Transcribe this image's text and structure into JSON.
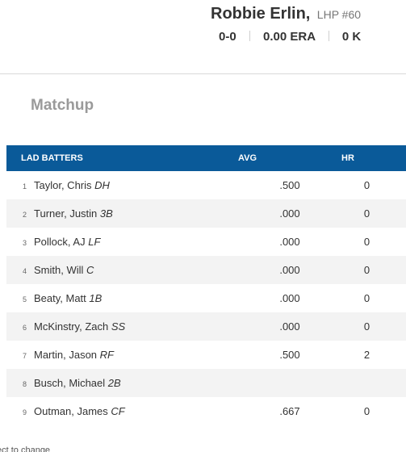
{
  "pitcher": {
    "name": "Robbie Erlin,",
    "position": "LHP #60",
    "record": "0-0",
    "era": "0.00 ERA",
    "strikeouts": "0 K"
  },
  "matchup": {
    "title": "Matchup",
    "headers": {
      "batters": "LAD BATTERS",
      "avg": "AVG",
      "hr": "HR"
    },
    "rows": [
      {
        "order": "1",
        "name": "Taylor, Chris",
        "pos": "DH",
        "avg": ".500",
        "hr": "0"
      },
      {
        "order": "2",
        "name": "Turner, Justin",
        "pos": "3B",
        "avg": ".000",
        "hr": "0"
      },
      {
        "order": "3",
        "name": "Pollock, AJ",
        "pos": "LF",
        "avg": ".000",
        "hr": "0"
      },
      {
        "order": "4",
        "name": "Smith, Will",
        "pos": "C",
        "avg": ".000",
        "hr": "0"
      },
      {
        "order": "5",
        "name": "Beaty, Matt",
        "pos": "1B",
        "avg": ".000",
        "hr": "0"
      },
      {
        "order": "6",
        "name": "McKinstry, Zach",
        "pos": "SS",
        "avg": ".000",
        "hr": "0"
      },
      {
        "order": "7",
        "name": "Martin, Jason",
        "pos": "RF",
        "avg": ".500",
        "hr": "2"
      },
      {
        "order": "8",
        "name": "Busch, Michael",
        "pos": "2B",
        "avg": "",
        "hr": ""
      },
      {
        "order": "9",
        "name": "Outman, James",
        "pos": "CF",
        "avg": ".667",
        "hr": "0"
      }
    ]
  },
  "footer": {
    "note": "ect to change"
  },
  "colors": {
    "header_bg": "#0a5a99",
    "stripe": "#f3f3f3",
    "matchup_title": "#9a9a9a"
  }
}
